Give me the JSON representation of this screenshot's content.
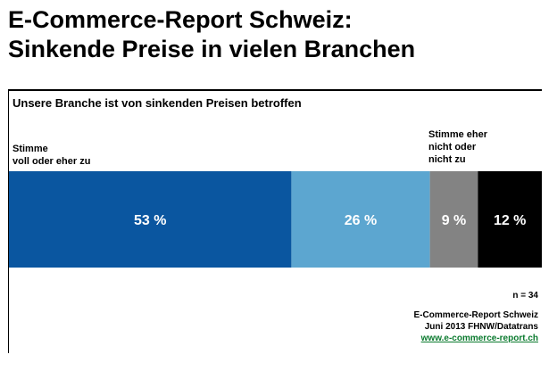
{
  "title": {
    "line1": "E-Commerce-Report Schweiz:",
    "line2": "Sinkende Preise in vielen Branchen"
  },
  "chart_data": {
    "type": "bar",
    "orientation": "horizontal-stacked",
    "title": "Unsere Branche ist von sinkenden Preisen betroffen",
    "category_labels": {
      "left": [
        "Stimme",
        "voll oder eher zu"
      ],
      "right": [
        "Stimme eher",
        "nicht oder",
        "nicht zu"
      ]
    },
    "segments": [
      {
        "value": 53,
        "label": "53 %",
        "color": "#0a56a0",
        "text_color": "#ffffff"
      },
      {
        "value": 26,
        "label": "26 %",
        "color": "#5ca6d0",
        "text_color": "#ffffff"
      },
      {
        "value": 9,
        "label": "9 %",
        "color": "#838383",
        "text_color": "#ffffff"
      },
      {
        "value": 12,
        "label": "12 %",
        "color": "#000000",
        "text_color": "#ffffff"
      }
    ],
    "unit": "%",
    "legend": false,
    "grid": false
  },
  "footer": {
    "n": "n = 34",
    "source_line1": "E-Commerce-Report Schweiz",
    "source_line2": "Juni 2013 FHNW/Datatrans",
    "url": "www.e-commerce-report.ch"
  }
}
